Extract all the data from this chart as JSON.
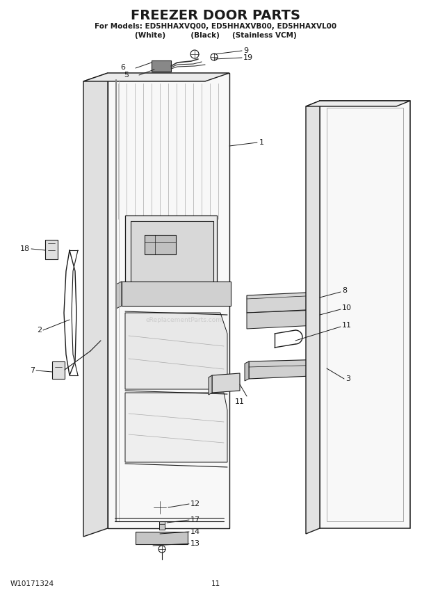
{
  "title": "FREEZER DOOR PARTS",
  "subtitle1": "For Models: ED5HHAXVQ00, ED5HHAXVB00, ED5HHAXVL00",
  "subtitle2": "(White)          (Black)     (Stainless VCM)",
  "footer_left": "W10171324",
  "footer_center": "11",
  "bg_color": "#ffffff",
  "line_color": "#1a1a1a",
  "watermark": "eReplacementParts.com"
}
